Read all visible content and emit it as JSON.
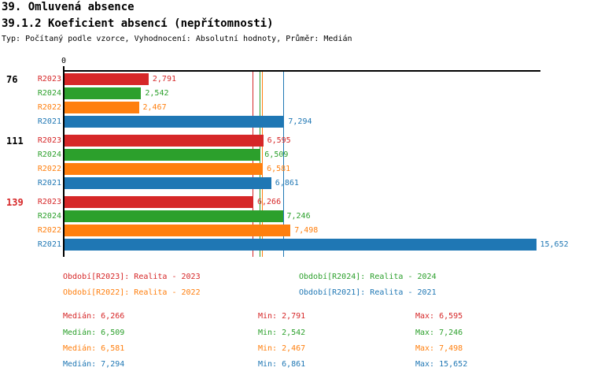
{
  "header": {
    "title": "39. Omluvená absence",
    "subtitle": "39.1.2 Koeficient absencí (nepřítomnosti)",
    "meta": "Typ: Počítaný podle vzorce, Vyhodnocení: Absolutní hodnoty, Průměr: Medián"
  },
  "colors": {
    "R2023": "#d62728",
    "R2024": "#2ca02c",
    "R2022": "#ff7f0e",
    "R2021": "#1f77b4",
    "axis": "#000000",
    "group_label_default": "#000000",
    "group_label_highlight": "#d62728"
  },
  "chart_data": {
    "type": "bar",
    "orientation": "horizontal",
    "x_axis": {
      "zero_label": "0",
      "min": 0,
      "max": 15822,
      "grid": false
    },
    "series_order": [
      "R2023",
      "R2024",
      "R2022",
      "R2021"
    ],
    "groups": [
      {
        "label": "76",
        "label_color": "#000000",
        "values": [
          {
            "series": "R2023",
            "value": 2791,
            "display": "2,791"
          },
          {
            "series": "R2024",
            "value": 2542,
            "display": "2,542"
          },
          {
            "series": "R2022",
            "value": 2467,
            "display": "2,467"
          },
          {
            "series": "R2021",
            "value": 7294,
            "display": "7,294"
          }
        ]
      },
      {
        "label": "111",
        "label_color": "#000000",
        "values": [
          {
            "series": "R2023",
            "value": 6595,
            "display": "6,595"
          },
          {
            "series": "R2024",
            "value": 6509,
            "display": "6,509"
          },
          {
            "series": "R2022",
            "value": 6581,
            "display": "6,581"
          },
          {
            "series": "R2021",
            "value": 6861,
            "display": "6,861"
          }
        ]
      },
      {
        "label": "139",
        "label_color": "#d62728",
        "values": [
          {
            "series": "R2023",
            "value": 6266,
            "display": "6,266"
          },
          {
            "series": "R2024",
            "value": 7246,
            "display": "7,246"
          },
          {
            "series": "R2022",
            "value": 7498,
            "display": "7,498"
          },
          {
            "series": "R2021",
            "value": 15652,
            "display": "15,652"
          }
        ]
      }
    ],
    "median_lines": [
      {
        "series": "R2023",
        "value": 6266
      },
      {
        "series": "R2024",
        "value": 6509
      },
      {
        "series": "R2022",
        "value": 6581
      },
      {
        "series": "R2021",
        "value": 7294
      }
    ]
  },
  "legend": {
    "rows": [
      [
        {
          "series": "R2023",
          "text": "Období[R2023]: Realita - 2023"
        },
        {
          "series": "R2024",
          "text": "Období[R2024]: Realita - 2024"
        }
      ],
      [
        {
          "series": "R2022",
          "text": "Období[R2022]: Realita - 2022"
        },
        {
          "series": "R2021",
          "text": "Období[R2021]: Realita - 2021"
        }
      ]
    ]
  },
  "stats": {
    "rows": [
      {
        "series": "R2023",
        "median": "Medián: 6,266",
        "min": "Min: 2,791",
        "max": "Max: 6,595"
      },
      {
        "series": "R2024",
        "median": "Medián: 6,509",
        "min": "Min: 2,542",
        "max": "Max: 7,246"
      },
      {
        "series": "R2022",
        "median": "Medián: 6,581",
        "min": "Min: 2,467",
        "max": "Max: 7,498"
      },
      {
        "series": "R2021",
        "median": "Medián: 7,294",
        "min": "Min: 6,861",
        "max": "Max: 15,652"
      }
    ]
  }
}
